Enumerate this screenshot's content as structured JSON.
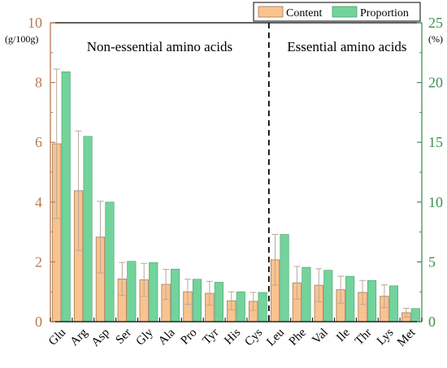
{
  "chart_data": {
    "type": "bar",
    "categories": [
      "Glu",
      "Arg",
      "Asp",
      "Ser",
      "Gly",
      "Ala",
      "Pro",
      "Tyr",
      "His",
      "Cys",
      "Leu",
      "Phe",
      "Val",
      "Ile",
      "Thr",
      "Lys",
      "Met"
    ],
    "series": [
      {
        "name": "Content",
        "axis": "left",
        "values": [
          5.95,
          4.38,
          2.83,
          1.43,
          1.4,
          1.25,
          1.0,
          0.95,
          0.7,
          0.68,
          2.07,
          1.3,
          1.22,
          1.07,
          0.98,
          0.85,
          0.3
        ],
        "error": [
          2.5,
          2.0,
          1.2,
          0.55,
          0.55,
          0.5,
          0.42,
          0.4,
          0.3,
          0.3,
          0.85,
          0.55,
          0.55,
          0.45,
          0.4,
          0.38,
          0.15
        ]
      },
      {
        "name": "Proportion",
        "axis": "right",
        "values": [
          20.9,
          15.5,
          10.0,
          5.05,
          4.95,
          4.4,
          3.55,
          3.3,
          2.5,
          2.45,
          7.3,
          4.55,
          4.3,
          3.8,
          3.45,
          3.0,
          1.1
        ]
      }
    ],
    "y_left": {
      "ylim": [
        0,
        10
      ],
      "ticks": [
        "0",
        "2",
        "4",
        "6",
        "8",
        "10"
      ],
      "unit": "(g/100g)"
    },
    "y_right": {
      "ylim": [
        0,
        25
      ],
      "ticks": [
        "0",
        "5",
        "10",
        "15",
        "20",
        "25"
      ],
      "unit": "(%)"
    },
    "annotations": {
      "left_region": "Non-essential amino acids",
      "right_region": "Essential amino acids"
    },
    "divider_after_category": "Cys",
    "legend_position": "top-right",
    "colors": {
      "content": "#F9C38F",
      "content_edge": "#A47A56",
      "proportion": "#72D39B",
      "proportion_edge": "#4C9E6E",
      "left_axis": "#B97A52",
      "right_axis": "#3E9152",
      "error_bar": "#B8A89A"
    }
  }
}
